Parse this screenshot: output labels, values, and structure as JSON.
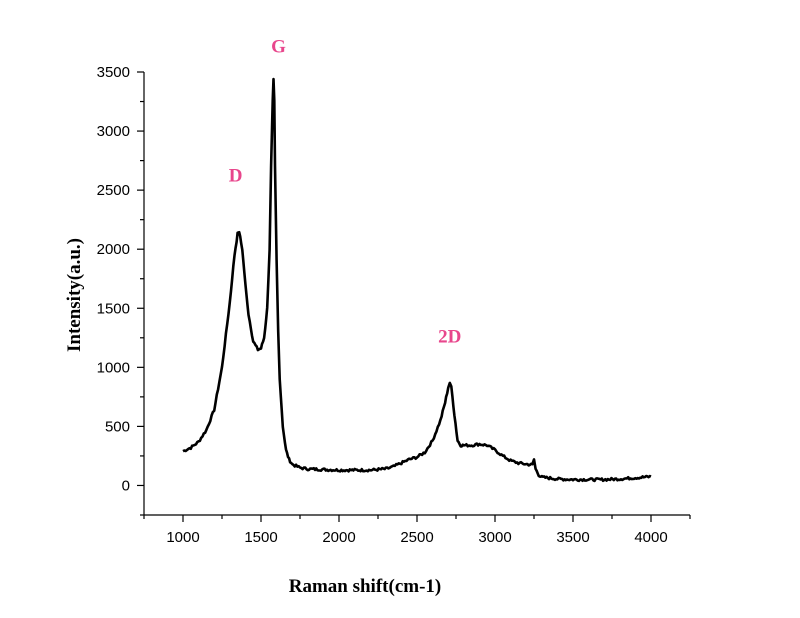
{
  "chart_data": {
    "type": "line",
    "title": "",
    "xlabel": "Raman shift(cm-1)",
    "ylabel": "Intensity(a.u.)",
    "xlim": [
      750,
      4250
    ],
    "ylim": [
      -250,
      3500
    ],
    "x_ticks": [
      1000,
      1500,
      2000,
      2500,
      3000,
      3500,
      4000
    ],
    "y_ticks": [
      0,
      500,
      1000,
      1500,
      2000,
      2500,
      3000,
      3500
    ],
    "grid": false,
    "line_color": "#000000",
    "annotation_color": "#e8468c",
    "annotations": [
      {
        "text": "D",
        "x": 1350,
        "y": 2150
      },
      {
        "text": "G",
        "x": 1580,
        "y": 3430
      },
      {
        "text": "2D",
        "x": 2710,
        "y": 870
      }
    ],
    "series": [
      {
        "x": [
          1000,
          1050,
          1100,
          1150,
          1200,
          1250,
          1300,
          1330,
          1350,
          1360,
          1380,
          1400,
          1420,
          1450,
          1480,
          1500,
          1520,
          1540,
          1555,
          1565,
          1575,
          1580,
          1585,
          1590,
          1600,
          1610,
          1620,
          1640,
          1660,
          1680,
          1700,
          1750,
          1800,
          1900,
          2000,
          2100,
          2200,
          2300,
          2350,
          2400,
          2450,
          2500,
          2550,
          2600,
          2650,
          2680,
          2700,
          2710,
          2720,
          2740,
          2760,
          2780,
          2800,
          2850,
          2900,
          2950,
          3000,
          3050,
          3100,
          3150,
          3200,
          3240,
          3250,
          3260,
          3280,
          3300,
          3400,
          3500,
          3600,
          3700,
          3800,
          3900,
          4000
        ],
        "values": [
          290,
          320,
          370,
          470,
          640,
          1000,
          1550,
          1950,
          2130,
          2150,
          2000,
          1700,
          1450,
          1220,
          1150,
          1160,
          1250,
          1500,
          2000,
          2700,
          3250,
          3430,
          3250,
          2700,
          1900,
          1300,
          900,
          500,
          300,
          220,
          180,
          150,
          140,
          135,
          130,
          130,
          130,
          140,
          160,
          190,
          220,
          240,
          280,
          380,
          550,
          700,
          830,
          870,
          830,
          600,
          380,
          340,
          340,
          340,
          350,
          340,
          300,
          250,
          210,
          190,
          180,
          175,
          220,
          140,
          90,
          70,
          55,
          50,
          50,
          50,
          55,
          65,
          75
        ]
      }
    ]
  }
}
